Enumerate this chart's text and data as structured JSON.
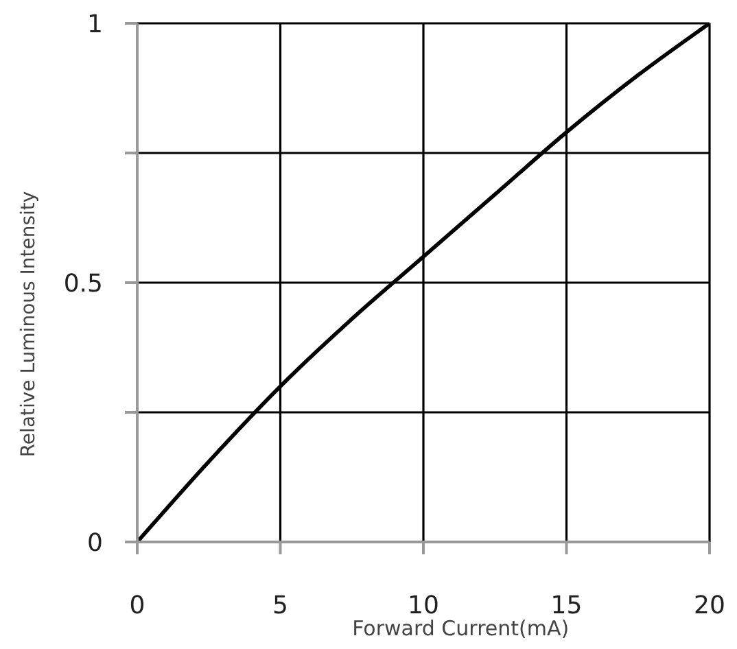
{
  "chart_data": {
    "type": "line",
    "xlabel": "Forward Current(mA)",
    "ylabel": "Relative Luminous Intensity",
    "x": [
      0,
      2.5,
      5,
      7.5,
      10,
      12.5,
      15,
      17.5,
      20
    ],
    "series": [
      {
        "color": "#000000",
        "values": [
          0,
          0.155,
          0.3,
          0.43,
          0.55,
          0.67,
          0.79,
          0.9,
          1
        ]
      }
    ],
    "xlim": [
      0,
      20
    ],
    "xticks": [
      0,
      5,
      10,
      15,
      20
    ],
    "ylim": [
      0,
      1
    ],
    "yticks": [
      0,
      {
        "value": 0.25,
        "label": null
      },
      0.5,
      {
        "value": 0.75,
        "label": null
      },
      1
    ],
    "grid": true,
    "marker": "none",
    "line_style": "solid"
  }
}
